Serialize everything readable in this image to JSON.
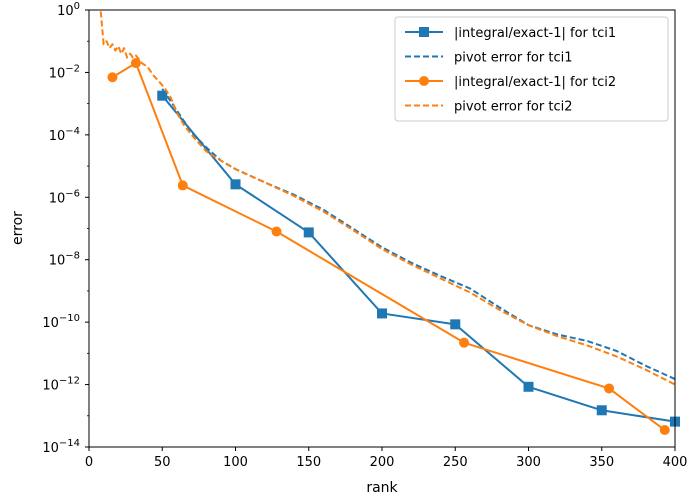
{
  "chart_data": {
    "type": "line",
    "xlabel": "rank",
    "ylabel": "error",
    "xlim": [
      0,
      400
    ],
    "ylim": [
      1e-14,
      1
    ],
    "yscale": "log",
    "xticks": [
      {
        "value": 0,
        "label": "0"
      },
      {
        "value": 50,
        "label": "50"
      },
      {
        "value": 100,
        "label": "100"
      },
      {
        "value": 150,
        "label": "150"
      },
      {
        "value": 200,
        "label": "200"
      },
      {
        "value": 250,
        "label": "250"
      },
      {
        "value": 300,
        "label": "300"
      },
      {
        "value": 350,
        "label": "350"
      },
      {
        "value": 400,
        "label": "400"
      }
    ],
    "yticks": [
      {
        "exp": 0,
        "base": "10",
        "sup": "0"
      },
      {
        "exp": -2,
        "base": "10",
        "sup": "−2"
      },
      {
        "exp": -4,
        "base": "10",
        "sup": "−4"
      },
      {
        "exp": -6,
        "base": "10",
        "sup": "−6"
      },
      {
        "exp": -8,
        "base": "10",
        "sup": "−8"
      },
      {
        "exp": -10,
        "base": "10",
        "sup": "−10"
      },
      {
        "exp": -12,
        "base": "10",
        "sup": "−12"
      },
      {
        "exp": -14,
        "base": "10",
        "sup": "−14"
      }
    ],
    "grid": false,
    "legend_position": "upper right",
    "series": [
      {
        "name": "|integral/exact-1| for tci1",
        "color": "#1f77b4",
        "style": "solid",
        "marker": "square",
        "x": [
          50,
          100,
          150,
          200,
          250,
          300,
          350,
          400
        ],
        "y": [
          0.0018,
          2.6e-06,
          7.5e-08,
          1.9e-10,
          8.5e-11,
          8.5e-13,
          1.5e-13,
          6.5e-14
        ]
      },
      {
        "name": "pivot error for tci1",
        "color": "#1f77b4",
        "style": "dashed",
        "marker": "none",
        "x": [
          50,
          60,
          70,
          80,
          90,
          100,
          120,
          140,
          160,
          180,
          200,
          220,
          240,
          260,
          280,
          300,
          320,
          340,
          360,
          380,
          400
        ],
        "y": [
          0.003,
          0.0006,
          0.00012,
          4e-05,
          1.5e-05,
          8e-06,
          3e-06,
          1.2e-06,
          4e-07,
          1e-07,
          2.5e-08,
          8e-09,
          3e-09,
          1.2e-09,
          3e-10,
          8e-11,
          4e-11,
          2.5e-11,
          1.2e-11,
          4e-12,
          1.5e-12
        ]
      },
      {
        "name": "|integral/exact-1| for tci2",
        "color": "#ff7f0e",
        "style": "solid",
        "marker": "circle",
        "x": [
          16,
          32,
          64,
          128,
          256,
          355,
          393
        ],
        "y": [
          0.007,
          0.02,
          2.4e-06,
          8e-08,
          2.2e-11,
          7.5e-13,
          3.5e-14
        ]
      },
      {
        "name": "pivot error for tci2",
        "color": "#ff7f0e",
        "style": "dashed",
        "marker": "none",
        "x": [
          8,
          10,
          12,
          14,
          16,
          18,
          20,
          22,
          24,
          26,
          28,
          30,
          32,
          36,
          40,
          44,
          48,
          52,
          56,
          60,
          65,
          70,
          80,
          90,
          100,
          120,
          140,
          160,
          180,
          200,
          220,
          240,
          260,
          280,
          300,
          320,
          340,
          360,
          380,
          400
        ],
        "y": [
          0.9,
          0.08,
          0.1,
          0.06,
          0.08,
          0.05,
          0.07,
          0.04,
          0.06,
          0.03,
          0.04,
          0.03,
          0.035,
          0.02,
          0.015,
          0.008,
          0.005,
          0.003,
          0.0015,
          0.0005,
          0.0002,
          0.0001,
          3e-05,
          1.5e-05,
          8e-06,
          3e-06,
          1.1e-06,
          3.5e-07,
          9e-08,
          2.2e-08,
          7e-09,
          2.5e-09,
          9e-10,
          2.5e-10,
          8e-11,
          3.5e-11,
          1.8e-11,
          8e-12,
          3e-12,
          1e-12
        ]
      }
    ]
  }
}
